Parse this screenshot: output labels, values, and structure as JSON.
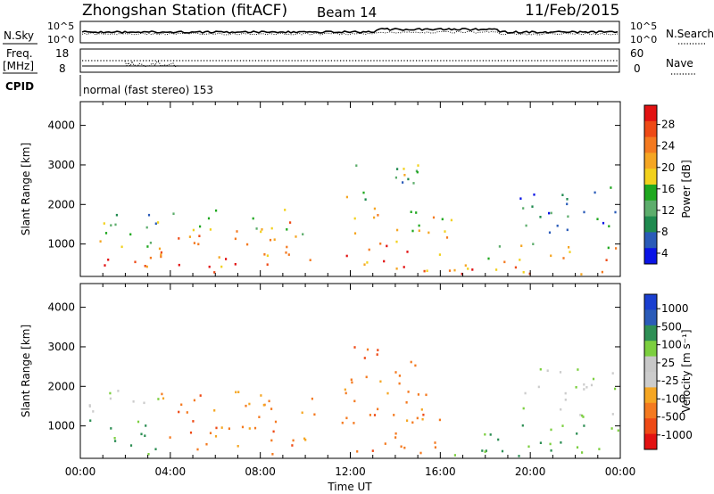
{
  "header": {
    "title": "Zhongshan Station (fitACF)",
    "beam": "Beam 14",
    "date": "11/Feb/2015"
  },
  "status_panel": {
    "nsky_label": "N.Sky",
    "nsearch_label": "N.Search",
    "freq_label_1": "Freq.",
    "freq_label_2": "[MHz]",
    "nave_label": "Nave",
    "cpid_label": "CPID",
    "noise_ticks_left": [
      "10^5",
      "10^0"
    ],
    "noise_ticks_right": [
      "10^5",
      "10^0"
    ],
    "freq_ticks": [
      "18",
      "8"
    ],
    "nave_ticks": [
      "60",
      "0"
    ],
    "cpid_text": "normal (fast stereo) 153"
  },
  "chart_data": [
    {
      "type": "heatmap",
      "name": "power",
      "ylabel": "Slant Range [km]",
      "xlabel": "",
      "x_ticks": [
        "00:00",
        "04:00",
        "08:00",
        "12:00",
        "16:00",
        "20:00",
        "00:00"
      ],
      "x_range_hours": [
        0,
        24
      ],
      "y_ticks": [
        1000,
        2000,
        3000,
        4000
      ],
      "ylim": [
        180,
        4600
      ],
      "colorbar": {
        "label": "Power [dB]",
        "ticks": [
          "28",
          "24",
          "20",
          "16",
          "12",
          "8",
          "4"
        ],
        "range": [
          0,
          30
        ],
        "colors": [
          "#0a14e6",
          "#2a5bb8",
          "#1f8a4f",
          "#5dad6c",
          "#1fa81f",
          "#f2d11d",
          "#f5a623",
          "#f47a20",
          "#ee4a16",
          "#e21212"
        ]
      },
      "regions": [
        {
          "t": [
            0.3,
            3.5
          ],
          "r": [
            300,
            1200
          ],
          "level": "high"
        },
        {
          "t": [
            0.3,
            3.5
          ],
          "r": [
            1200,
            2000
          ],
          "level": "mid"
        },
        {
          "t": [
            3.5,
            10.5
          ],
          "r": [
            300,
            1900
          ],
          "level": "high"
        },
        {
          "t": [
            11.6,
            16.5
          ],
          "r": [
            300,
            2000
          ],
          "level": "high"
        },
        {
          "t": [
            11.8,
            15.0
          ],
          "r": [
            2100,
            3250
          ],
          "level": "mid"
        },
        {
          "t": [
            16.5,
            23.9
          ],
          "r": [
            250,
            1100
          ],
          "level": "high"
        },
        {
          "t": [
            19.5,
            23.9
          ],
          "r": [
            1200,
            2500
          ],
          "level": "low"
        }
      ]
    },
    {
      "type": "heatmap",
      "name": "velocity",
      "ylabel": "Slant Range [km]",
      "xlabel": "Time UT",
      "x_ticks": [
        "00:00",
        "04:00",
        "08:00",
        "12:00",
        "16:00",
        "20:00",
        "00:00"
      ],
      "x_range_hours": [
        0,
        24
      ],
      "y_ticks": [
        1000,
        2000,
        3000,
        4000
      ],
      "ylim": [
        180,
        4600
      ],
      "colorbar": {
        "label": "Velocity [m s⁻¹]",
        "ticks": [
          "1000",
          "500",
          "100",
          "25",
          "-25",
          "-100",
          "-500",
          "-1000"
        ],
        "range": [
          -1200,
          1200
        ],
        "colors": [
          "#e21212",
          "#ee4a16",
          "#f47a20",
          "#f5a623",
          "#cccccc",
          "#c8c8c8",
          "#7ccf3f",
          "#2e8f55",
          "#2a5bb8",
          "#1a3fd0"
        ]
      },
      "regions": [
        {
          "t": [
            0.3,
            3.5
          ],
          "r": [
            300,
            1200
          ],
          "level": "green"
        },
        {
          "t": [
            0.3,
            3.5
          ],
          "r": [
            1300,
            2000
          ],
          "level": "gray"
        },
        {
          "t": [
            3.5,
            10.5
          ],
          "r": [
            300,
            1900
          ],
          "level": "orange"
        },
        {
          "t": [
            11.6,
            16.5
          ],
          "r": [
            300,
            2000
          ],
          "level": "orange"
        },
        {
          "t": [
            11.8,
            15.0
          ],
          "r": [
            2100,
            3250
          ],
          "level": "orange"
        },
        {
          "t": [
            16.5,
            23.9
          ],
          "r": [
            250,
            1100
          ],
          "level": "green"
        },
        {
          "t": [
            19.5,
            23.9
          ],
          "r": [
            1200,
            2500
          ],
          "level": "gray"
        }
      ]
    }
  ]
}
